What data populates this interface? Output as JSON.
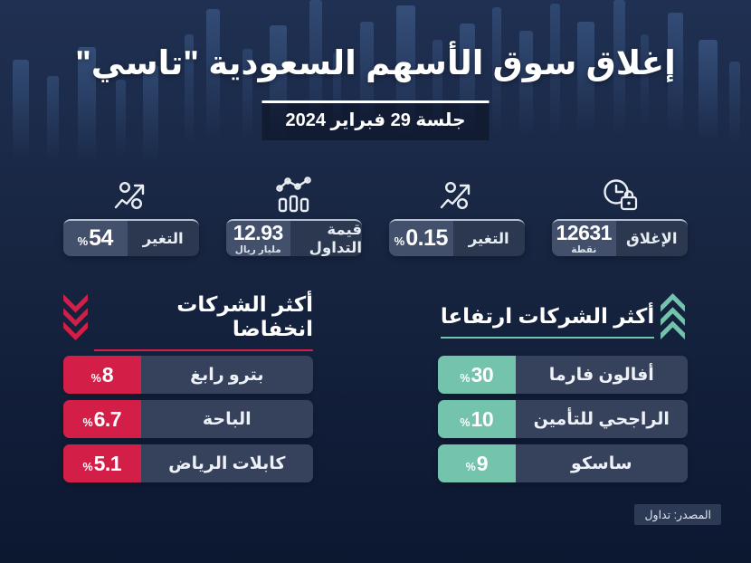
{
  "header": {
    "title": "إغلاق سوق الأسهم السعودية \"تاسي\"",
    "session_date": "جلسة 29 فبراير 2024"
  },
  "stats": [
    {
      "icon": "clock-lock-icon",
      "label": "الإغلاق",
      "value": "12631",
      "unit": "نقطة"
    },
    {
      "icon": "percent-trend-icon",
      "label": "التغير",
      "value": "0.15",
      "unit": "%"
    },
    {
      "icon": "chart-bars-line-icon",
      "label": "قيمة التداول",
      "value": "12.93",
      "unit": "مليار ريال"
    },
    {
      "icon": "percent-trend-icon",
      "label": "التغير",
      "value": "54",
      "unit": "%"
    }
  ],
  "top_gainers": {
    "icon": "triple-chevron-up-icon",
    "title": "أكثر الشركات ارتفاعا",
    "companies": [
      {
        "name": "أفالون فارما",
        "change_pct": "30",
        "percent_sign": "%"
      },
      {
        "name": "الراجحي للتأمين",
        "change_pct": "10",
        "percent_sign": "%"
      },
      {
        "name": "ساسكو",
        "change_pct": "9",
        "percent_sign": "%"
      }
    ]
  },
  "top_losers": {
    "icon": "triple-chevron-down-icon",
    "title": "أكثر الشركات انخفاضا",
    "companies": [
      {
        "name": "بترو رابغ",
        "change_pct": "8",
        "percent_sign": "%"
      },
      {
        "name": "الباحة",
        "change_pct": "6.7",
        "percent_sign": "%"
      },
      {
        "name": "كابلات الرياض",
        "change_pct": "5.1",
        "percent_sign": "%"
      }
    ]
  },
  "source": "المصدر: تداول",
  "colors": {
    "background_top": "#203052",
    "background_bottom": "#0c1730",
    "panel": "#36425c",
    "stat_label_bg": "#2b3850",
    "stat_value_bg": "#43506b",
    "up": "#74c3ad",
    "down": "#d31e48"
  },
  "chart_data": [
    {
      "type": "table",
      "title": "إغلاق سوق الأسهم السعودية \"تاسي\" — جلسة 29 فبراير 2024",
      "rows": [
        [
          "الإغلاق",
          "12631 نقطة"
        ],
        [
          "التغير",
          "0.15 %"
        ],
        [
          "قيمة التداول",
          "12.93 مليار ريال"
        ],
        [
          "التغير",
          "54 %"
        ]
      ]
    },
    {
      "type": "bar",
      "title": "أكثر الشركات ارتفاعا",
      "categories": [
        "أفالون فارما",
        "الراجحي للتأمين",
        "ساسكو"
      ],
      "values": [
        30,
        10,
        9
      ],
      "ylabel": "%"
    },
    {
      "type": "bar",
      "title": "أكثر الشركات انخفاضا",
      "categories": [
        "بترو رابغ",
        "الباحة",
        "كابلات الرياض"
      ],
      "values": [
        8,
        6.7,
        5.1
      ],
      "ylabel": "%"
    }
  ]
}
